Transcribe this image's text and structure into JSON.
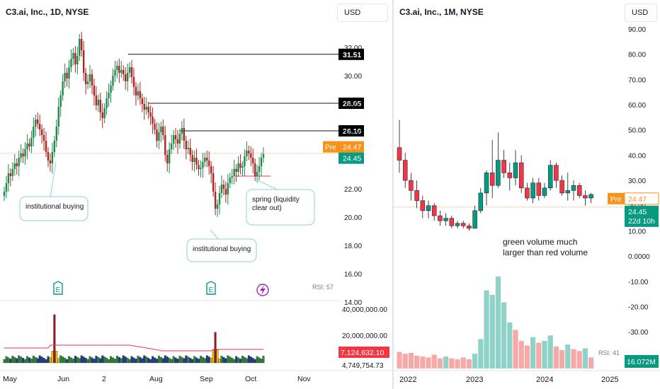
{
  "left": {
    "title": "C3.ai, Inc., 1D, NYSE",
    "currency": "USD",
    "price_axis": [
      "32.00",
      "30.00",
      "28.00",
      "26.00",
      "24.00",
      "22.00",
      "20.00",
      "18.00",
      "16.00",
      "14.00"
    ],
    "level_badges": [
      "31.51",
      "28.05",
      "26.10"
    ],
    "pre_label": "Pre",
    "pre_price": "24.47",
    "last_price": "24.45",
    "volume_axis": [
      "40,000,000.00",
      "20,000,000.00",
      "4,749,754.73"
    ],
    "volume_badge": "7,124,632.10",
    "rsi_label": "RSI: 57",
    "time_axis": [
      "May",
      "Jun",
      "2",
      "Aug",
      "Sep",
      "Oct",
      "Nov"
    ],
    "annotations": {
      "inst_buying_1": "institutional buying",
      "inst_buying_2": "institutional buying",
      "spring_line1": "spring (liquidity",
      "spring_line2": "clear out)"
    },
    "event_icons": [
      "earnings-icon",
      "earnings-icon",
      "dividend-flash-icon"
    ],
    "colors": {
      "up": "#26a69a",
      "down": "#ef5350",
      "candle_up_dark": "#1b8a4a",
      "candle_down_dark": "#b22222",
      "pre": "#f7931a",
      "volume_ma": "#f23645"
    }
  },
  "right": {
    "title": "C3.ai, Inc., 1M, NYSE",
    "currency": "USD",
    "price_axis": [
      "90.00",
      "80.00",
      "70.00",
      "60.00",
      "50.00",
      "40.00",
      "30.00",
      "20.00",
      "10.00",
      "0.0000",
      "-10.00",
      "-20.00",
      "-30.00",
      "-40.00"
    ],
    "pre_label": "Pre",
    "pre_price": "24.47",
    "last_price": "24.45",
    "countdown": "22d 10h",
    "volume_badge": "16.072M",
    "rsi_label": "RSI: 41",
    "time_axis": [
      "2022",
      "2023",
      "2024",
      "2025"
    ],
    "annotation_line1": "green volume much",
    "annotation_line2": "larger than red volume"
  },
  "chart_data": [
    {
      "type": "candlestick",
      "title": "C3.ai, Inc., 1D, NYSE",
      "x_ticks": [
        "May",
        "Jun",
        "2",
        "Aug",
        "Sep",
        "Oct",
        "Nov"
      ],
      "ylim": [
        14,
        33
      ],
      "horizontal_levels": [
        31.51,
        28.05,
        26.1
      ],
      "last_price": 24.45,
      "pre_market_price": 24.47,
      "series_close_approx": [
        21.8,
        22.4,
        23.1,
        22.9,
        23.4,
        23.8,
        23.6,
        24.2,
        24.5,
        24.3,
        24.8,
        25.2,
        25.0,
        25.6,
        26.4,
        26.9,
        26.6,
        26.2,
        25.8,
        25.4,
        24.6,
        24.0,
        23.8,
        24.6,
        25.4,
        26.4,
        27.8,
        28.6,
        29.6,
        30.2,
        29.8,
        30.6,
        31.2,
        31.6,
        30.8,
        31.4,
        32.6,
        31.8,
        30.2,
        29.4,
        29.6,
        30.1,
        29.3,
        28.6,
        27.9,
        28.3,
        27.4,
        27.0,
        27.7,
        28.4,
        28.8,
        29.3,
        30.0,
        30.4,
        30.7,
        30.2,
        30.4,
        30.1,
        29.6,
        30.2,
        30.6,
        29.9,
        29.2,
        28.6,
        28.9,
        28.4,
        28.0,
        27.6,
        27.8,
        27.4,
        27.1,
        26.6,
        26.2,
        25.4,
        26.0,
        26.4,
        25.8,
        24.4,
        23.8,
        24.8,
        25.2,
        25.8,
        25.5,
        25.2,
        25.9,
        26.3,
        25.4,
        24.8,
        24.9,
        24.4,
        23.9,
        24.2,
        23.7,
        23.4,
        23.5,
        23.9,
        24.2,
        24.0,
        23.6,
        23.1,
        21.8,
        20.6,
        20.9,
        21.7,
        22.3,
        22.0,
        21.6,
        22.4,
        22.8,
        22.9,
        23.4,
        23.2,
        23.8,
        23.5,
        23.6,
        24.3,
        24.7,
        24.5,
        24.2,
        23.8,
        22.9,
        23.2,
        23.6,
        24.2,
        24.45
      ],
      "volume_axis": [
        40000000,
        20000000,
        4749754.73
      ],
      "last_volume": 7124632.1,
      "rsi": 57
    },
    {
      "type": "candlestick",
      "title": "C3.ai, Inc., 1M, NYSE",
      "x_ticks": [
        "2022",
        "2023",
        "2024",
        "2025"
      ],
      "ylim": [
        -40,
        90
      ],
      "last_price": 24.45,
      "pre_market_price": 24.47,
      "monthly_ohlc_approx": [
        {
          "o": 43,
          "h": 54,
          "l": 33,
          "c": 38
        },
        {
          "o": 38,
          "h": 41,
          "l": 27,
          "c": 30
        },
        {
          "o": 30,
          "h": 33,
          "l": 22,
          "c": 26
        },
        {
          "o": 26,
          "h": 30,
          "l": 19,
          "c": 22
        },
        {
          "o": 22,
          "h": 24,
          "l": 15,
          "c": 18
        },
        {
          "o": 18,
          "h": 22,
          "l": 15,
          "c": 20
        },
        {
          "o": 20,
          "h": 21,
          "l": 14,
          "c": 16
        },
        {
          "o": 16,
          "h": 18,
          "l": 12,
          "c": 14
        },
        {
          "o": 14,
          "h": 17,
          "l": 12,
          "c": 15
        },
        {
          "o": 15,
          "h": 16,
          "l": 11,
          "c": 12
        },
        {
          "o": 12,
          "h": 14,
          "l": 11,
          "c": 13
        },
        {
          "o": 13,
          "h": 14,
          "l": 11,
          "c": 12
        },
        {
          "o": 12,
          "h": 13,
          "l": 10,
          "c": 11
        },
        {
          "o": 11,
          "h": 20,
          "l": 11,
          "c": 18
        },
        {
          "o": 18,
          "h": 27,
          "l": 17,
          "c": 25
        },
        {
          "o": 25,
          "h": 34,
          "l": 20,
          "c": 33
        },
        {
          "o": 33,
          "h": 46,
          "l": 23,
          "c": 28
        },
        {
          "o": 28,
          "h": 49,
          "l": 27,
          "c": 38
        },
        {
          "o": 38,
          "h": 42,
          "l": 31,
          "c": 33
        },
        {
          "o": 33,
          "h": 37,
          "l": 26,
          "c": 31
        },
        {
          "o": 31,
          "h": 42,
          "l": 28,
          "c": 37
        },
        {
          "o": 37,
          "h": 40,
          "l": 25,
          "c": 27
        },
        {
          "o": 27,
          "h": 29,
          "l": 22,
          "c": 23
        },
        {
          "o": 23,
          "h": 31,
          "l": 21,
          "c": 29
        },
        {
          "o": 29,
          "h": 31,
          "l": 22,
          "c": 24
        },
        {
          "o": 24,
          "h": 29,
          "l": 23,
          "c": 27
        },
        {
          "o": 27,
          "h": 38,
          "l": 26,
          "c": 36
        },
        {
          "o": 36,
          "h": 37,
          "l": 27,
          "c": 30
        },
        {
          "o": 30,
          "h": 32,
          "l": 24,
          "c": 25
        },
        {
          "o": 25,
          "h": 33,
          "l": 22,
          "c": 26
        },
        {
          "o": 26,
          "h": 30,
          "l": 22,
          "c": 28
        },
        {
          "o": 28,
          "h": 29,
          "l": 23,
          "c": 24
        },
        {
          "o": 24,
          "h": 26,
          "l": 20,
          "c": 23
        },
        {
          "o": 23,
          "h": 25,
          "l": 21,
          "c": 24.45
        }
      ],
      "volume_colors_approx": [
        "r",
        "r",
        "r",
        "r",
        "r",
        "r",
        "r",
        "r",
        "g",
        "r",
        "r",
        "r",
        "r",
        "g",
        "g",
        "g",
        "g",
        "g",
        "g",
        "g",
        "r",
        "r",
        "r",
        "g",
        "r",
        "g",
        "g",
        "r",
        "r",
        "g",
        "r",
        "r",
        "g",
        "r"
      ],
      "volume_rel_approx": [
        0.18,
        0.16,
        0.17,
        0.14,
        0.13,
        0.12,
        0.15,
        0.11,
        0.13,
        0.11,
        0.1,
        0.12,
        0.1,
        0.16,
        0.32,
        0.85,
        0.8,
        1.0,
        0.72,
        0.5,
        0.42,
        0.3,
        0.25,
        0.34,
        0.28,
        0.3,
        0.36,
        0.24,
        0.2,
        0.26,
        0.21,
        0.19,
        0.22,
        0.12
      ],
      "last_volume_label": "16.072M",
      "rsi": 41
    }
  ]
}
